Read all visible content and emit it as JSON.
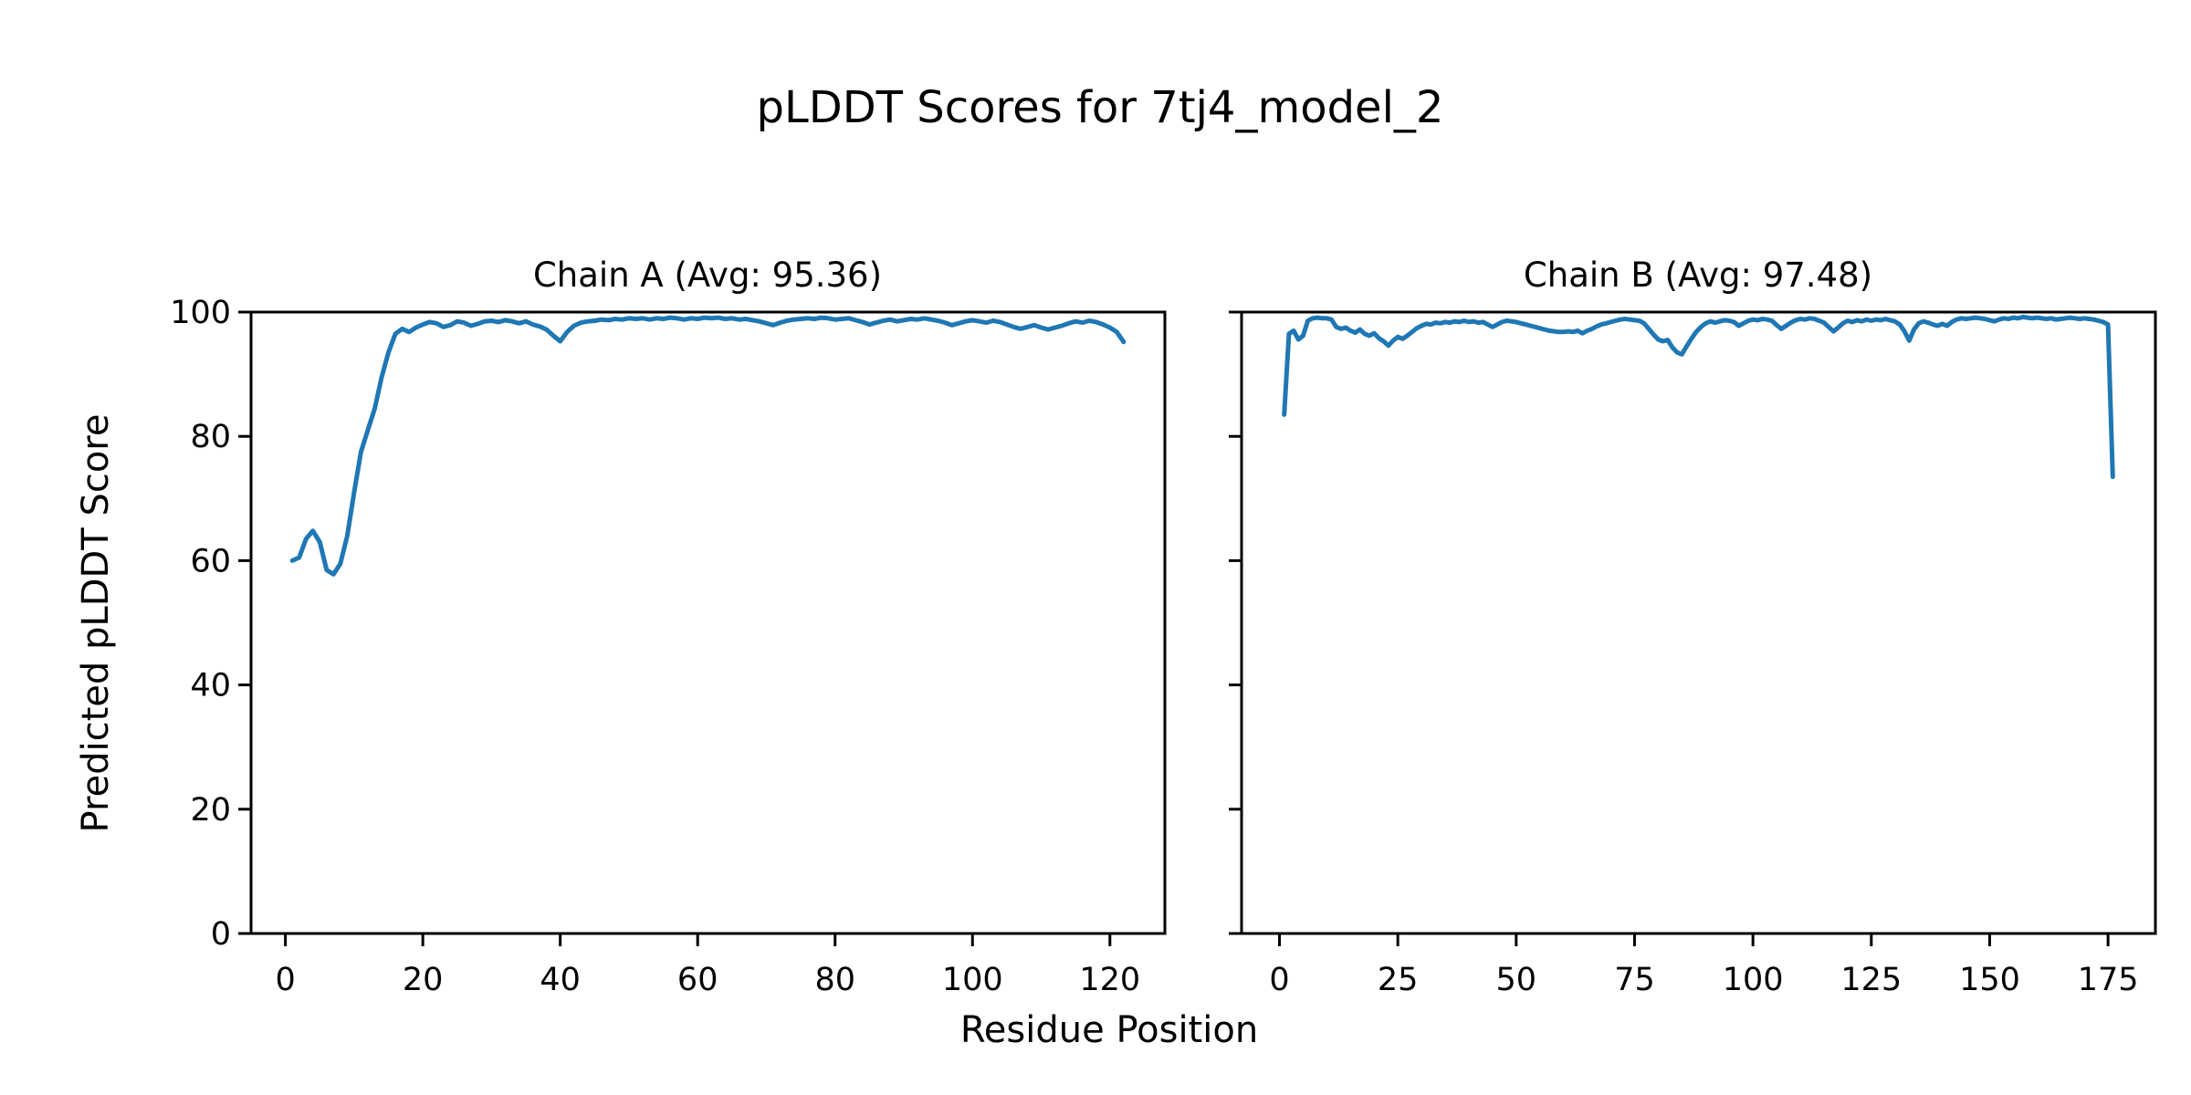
{
  "figure": {
    "suptitle": "pLDDT Scores for 7tj4_model_2",
    "xlabel": "Residue Position",
    "ylabel": "Predicted pLDDT Score",
    "line_color": "#1f77b4",
    "background_color": "#ffffff",
    "grid": false,
    "legend": false
  },
  "chart_data": [
    {
      "type": "line",
      "title": "Chain A (Avg: 95.36)",
      "chain": "A",
      "average_plddt": 95.36,
      "xlabel": "Residue Position",
      "ylabel": "Predicted pLDDT Score",
      "line_color": "#1f77b4",
      "xlim": [
        -5,
        128
      ],
      "ylim": [
        0,
        100
      ],
      "x_ticks": [
        0,
        20,
        40,
        60,
        80,
        100,
        120
      ],
      "y_ticks": [
        0,
        20,
        40,
        60,
        80,
        100
      ],
      "y_tick_labels_visible": true,
      "x": [
        1,
        2,
        3,
        4,
        5,
        6,
        7,
        8,
        9,
        10,
        11,
        12,
        13,
        14,
        15,
        16,
        17,
        18,
        19,
        20,
        21,
        22,
        23,
        24,
        25,
        26,
        27,
        28,
        29,
        30,
        31,
        32,
        33,
        34,
        35,
        36,
        37,
        38,
        39,
        40,
        41,
        42,
        43,
        44,
        45,
        46,
        47,
        48,
        49,
        50,
        51,
        52,
        53,
        54,
        55,
        56,
        57,
        58,
        59,
        60,
        61,
        62,
        63,
        64,
        65,
        66,
        67,
        68,
        69,
        70,
        71,
        72,
        73,
        74,
        75,
        76,
        77,
        78,
        79,
        80,
        81,
        82,
        83,
        84,
        85,
        86,
        87,
        88,
        89,
        90,
        91,
        92,
        93,
        94,
        95,
        96,
        97,
        98,
        99,
        100,
        101,
        102,
        103,
        104,
        105,
        106,
        107,
        108,
        109,
        110,
        111,
        112,
        113,
        114,
        115,
        116,
        117,
        118,
        119,
        120,
        121,
        122
      ],
      "y": [
        60.0,
        60.5,
        63.5,
        64.8,
        63.0,
        58.5,
        57.8,
        59.5,
        64.0,
        71.0,
        77.5,
        81.0,
        84.5,
        89.5,
        93.5,
        96.5,
        97.3,
        96.8,
        97.5,
        98.0,
        98.4,
        98.2,
        97.6,
        97.9,
        98.5,
        98.3,
        97.8,
        98.1,
        98.5,
        98.6,
        98.4,
        98.7,
        98.5,
        98.2,
        98.5,
        98.0,
        97.7,
        97.2,
        96.2,
        95.3,
        96.8,
        97.8,
        98.3,
        98.5,
        98.6,
        98.8,
        98.7,
        98.9,
        98.8,
        99.0,
        98.9,
        99.0,
        98.8,
        99.0,
        98.9,
        99.1,
        99.0,
        98.8,
        99.0,
        98.9,
        99.1,
        99.0,
        99.1,
        98.9,
        99.0,
        98.8,
        98.9,
        98.7,
        98.5,
        98.2,
        97.9,
        98.3,
        98.6,
        98.8,
        98.9,
        99.0,
        98.9,
        99.1,
        99.0,
        98.8,
        98.9,
        99.0,
        98.7,
        98.4,
        98.0,
        98.3,
        98.6,
        98.8,
        98.5,
        98.7,
        98.9,
        98.8,
        99.0,
        98.8,
        98.6,
        98.3,
        97.9,
        98.2,
        98.5,
        98.7,
        98.5,
        98.3,
        98.6,
        98.4,
        98.0,
        97.6,
        97.3,
        97.6,
        97.9,
        97.5,
        97.2,
        97.5,
        97.8,
        98.2,
        98.5,
        98.3,
        98.6,
        98.4,
        98.0,
        97.5,
        96.8,
        95.2
      ]
    },
    {
      "type": "line",
      "title": "Chain B (Avg: 97.48)",
      "chain": "B",
      "average_plddt": 97.48,
      "xlabel": "Residue Position",
      "ylabel": "Predicted pLDDT Score",
      "line_color": "#1f77b4",
      "xlim": [
        -8,
        185
      ],
      "ylim": [
        0,
        100
      ],
      "x_ticks": [
        0,
        25,
        50,
        75,
        100,
        125,
        150,
        175
      ],
      "y_ticks": [
        0,
        20,
        40,
        60,
        80,
        100
      ],
      "y_tick_labels_visible": false,
      "x": [
        1,
        2,
        3,
        4,
        5,
        6,
        7,
        8,
        9,
        10,
        11,
        12,
        13,
        14,
        15,
        16,
        17,
        18,
        19,
        20,
        21,
        22,
        23,
        24,
        25,
        26,
        27,
        28,
        29,
        30,
        31,
        32,
        33,
        34,
        35,
        36,
        37,
        38,
        39,
        40,
        41,
        42,
        43,
        44,
        45,
        46,
        47,
        48,
        49,
        50,
        51,
        52,
        53,
        54,
        55,
        56,
        57,
        58,
        59,
        60,
        61,
        62,
        63,
        64,
        65,
        66,
        67,
        68,
        69,
        70,
        71,
        72,
        73,
        74,
        75,
        76,
        77,
        78,
        79,
        80,
        81,
        82,
        83,
        84,
        85,
        86,
        87,
        88,
        89,
        90,
        91,
        92,
        93,
        94,
        95,
        96,
        97,
        98,
        99,
        100,
        101,
        102,
        103,
        104,
        105,
        106,
        107,
        108,
        109,
        110,
        111,
        112,
        113,
        114,
        115,
        116,
        117,
        118,
        119,
        120,
        121,
        122,
        123,
        124,
        125,
        126,
        127,
        128,
        129,
        130,
        131,
        132,
        133,
        134,
        135,
        136,
        137,
        138,
        139,
        140,
        141,
        142,
        143,
        144,
        145,
        146,
        147,
        148,
        149,
        150,
        151,
        152,
        153,
        154,
        155,
        156,
        157,
        158,
        159,
        160,
        161,
        162,
        163,
        164,
        165,
        166,
        167,
        168,
        169,
        170,
        171,
        172,
        173,
        174,
        175,
        176
      ],
      "y": [
        83.5,
        96.5,
        97.0,
        95.6,
        96.2,
        98.6,
        99.0,
        99.1,
        99.0,
        99.0,
        98.8,
        97.6,
        97.3,
        97.5,
        97.0,
        96.7,
        97.2,
        96.5,
        96.2,
        96.6,
        95.8,
        95.3,
        94.6,
        95.4,
        96.0,
        95.7,
        96.2,
        96.8,
        97.4,
        97.8,
        98.1,
        98.0,
        98.3,
        98.2,
        98.4,
        98.3,
        98.5,
        98.4,
        98.6,
        98.4,
        98.5,
        98.3,
        98.4,
        98.0,
        97.6,
        98.0,
        98.4,
        98.6,
        98.5,
        98.4,
        98.2,
        98.0,
        97.8,
        97.6,
        97.4,
        97.2,
        97.0,
        96.9,
        96.8,
        96.8,
        96.9,
        96.8,
        97.0,
        96.6,
        97.0,
        97.3,
        97.7,
        98.0,
        98.2,
        98.4,
        98.6,
        98.8,
        98.9,
        98.8,
        98.7,
        98.6,
        98.2,
        97.3,
        96.4,
        95.6,
        95.3,
        95.5,
        94.3,
        93.5,
        93.2,
        94.5,
        95.7,
        96.8,
        97.6,
        98.2,
        98.5,
        98.3,
        98.5,
        98.7,
        98.6,
        98.4,
        97.8,
        98.2,
        98.6,
        98.8,
        98.7,
        98.9,
        98.8,
        98.6,
        97.9,
        97.3,
        97.8,
        98.3,
        98.7,
        98.9,
        98.8,
        99.0,
        98.9,
        98.6,
        98.3,
        97.6,
        96.9,
        97.5,
        98.2,
        98.6,
        98.4,
        98.7,
        98.5,
        98.8,
        98.6,
        98.8,
        98.7,
        98.9,
        98.7,
        98.5,
        98.0,
        96.9,
        95.4,
        97.2,
        98.2,
        98.5,
        98.3,
        98.0,
        97.8,
        98.1,
        97.8,
        98.4,
        98.8,
        99.0,
        98.9,
        99.0,
        99.1,
        99.0,
        98.9,
        98.7,
        98.5,
        98.8,
        99.0,
        98.9,
        99.1,
        99.0,
        99.2,
        99.1,
        99.0,
        99.1,
        99.0,
        98.9,
        99.0,
        98.8,
        98.9,
        99.0,
        99.1,
        99.0,
        98.9,
        99.0,
        98.9,
        98.8,
        98.6,
        98.4,
        98.0,
        73.5
      ]
    }
  ]
}
